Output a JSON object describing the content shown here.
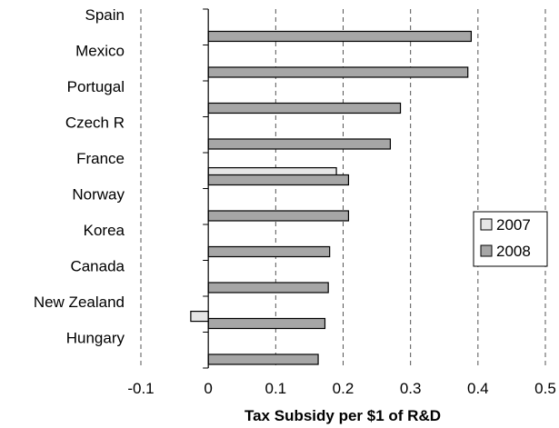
{
  "chart_data": {
    "type": "bar",
    "orientation": "horizontal",
    "categories": [
      "Spain",
      "Mexico",
      "Portugal",
      "Czech R",
      "France",
      "Norway",
      "Korea",
      "Canada",
      "New Zealand",
      "Hungary"
    ],
    "series": [
      {
        "name": "2007",
        "color": "#e6e6e6",
        "values": [
          null,
          null,
          null,
          null,
          0.19,
          null,
          null,
          null,
          -0.026,
          null
        ]
      },
      {
        "name": "2008",
        "color": "#a6a6a6",
        "values": [
          0.39,
          0.385,
          0.285,
          0.27,
          0.208,
          0.208,
          0.18,
          0.178,
          0.173,
          0.163
        ]
      }
    ],
    "title": "",
    "xlabel": "Tax Subsidy per $1 of R&D",
    "ylabel": "",
    "xlim": [
      -0.1,
      0.5
    ],
    "xticks": [
      "-0.1",
      "0",
      "0.1",
      "0.2",
      "0.3",
      "0.4",
      "0.5"
    ],
    "grid": "vertical dashed",
    "legend": "right"
  }
}
